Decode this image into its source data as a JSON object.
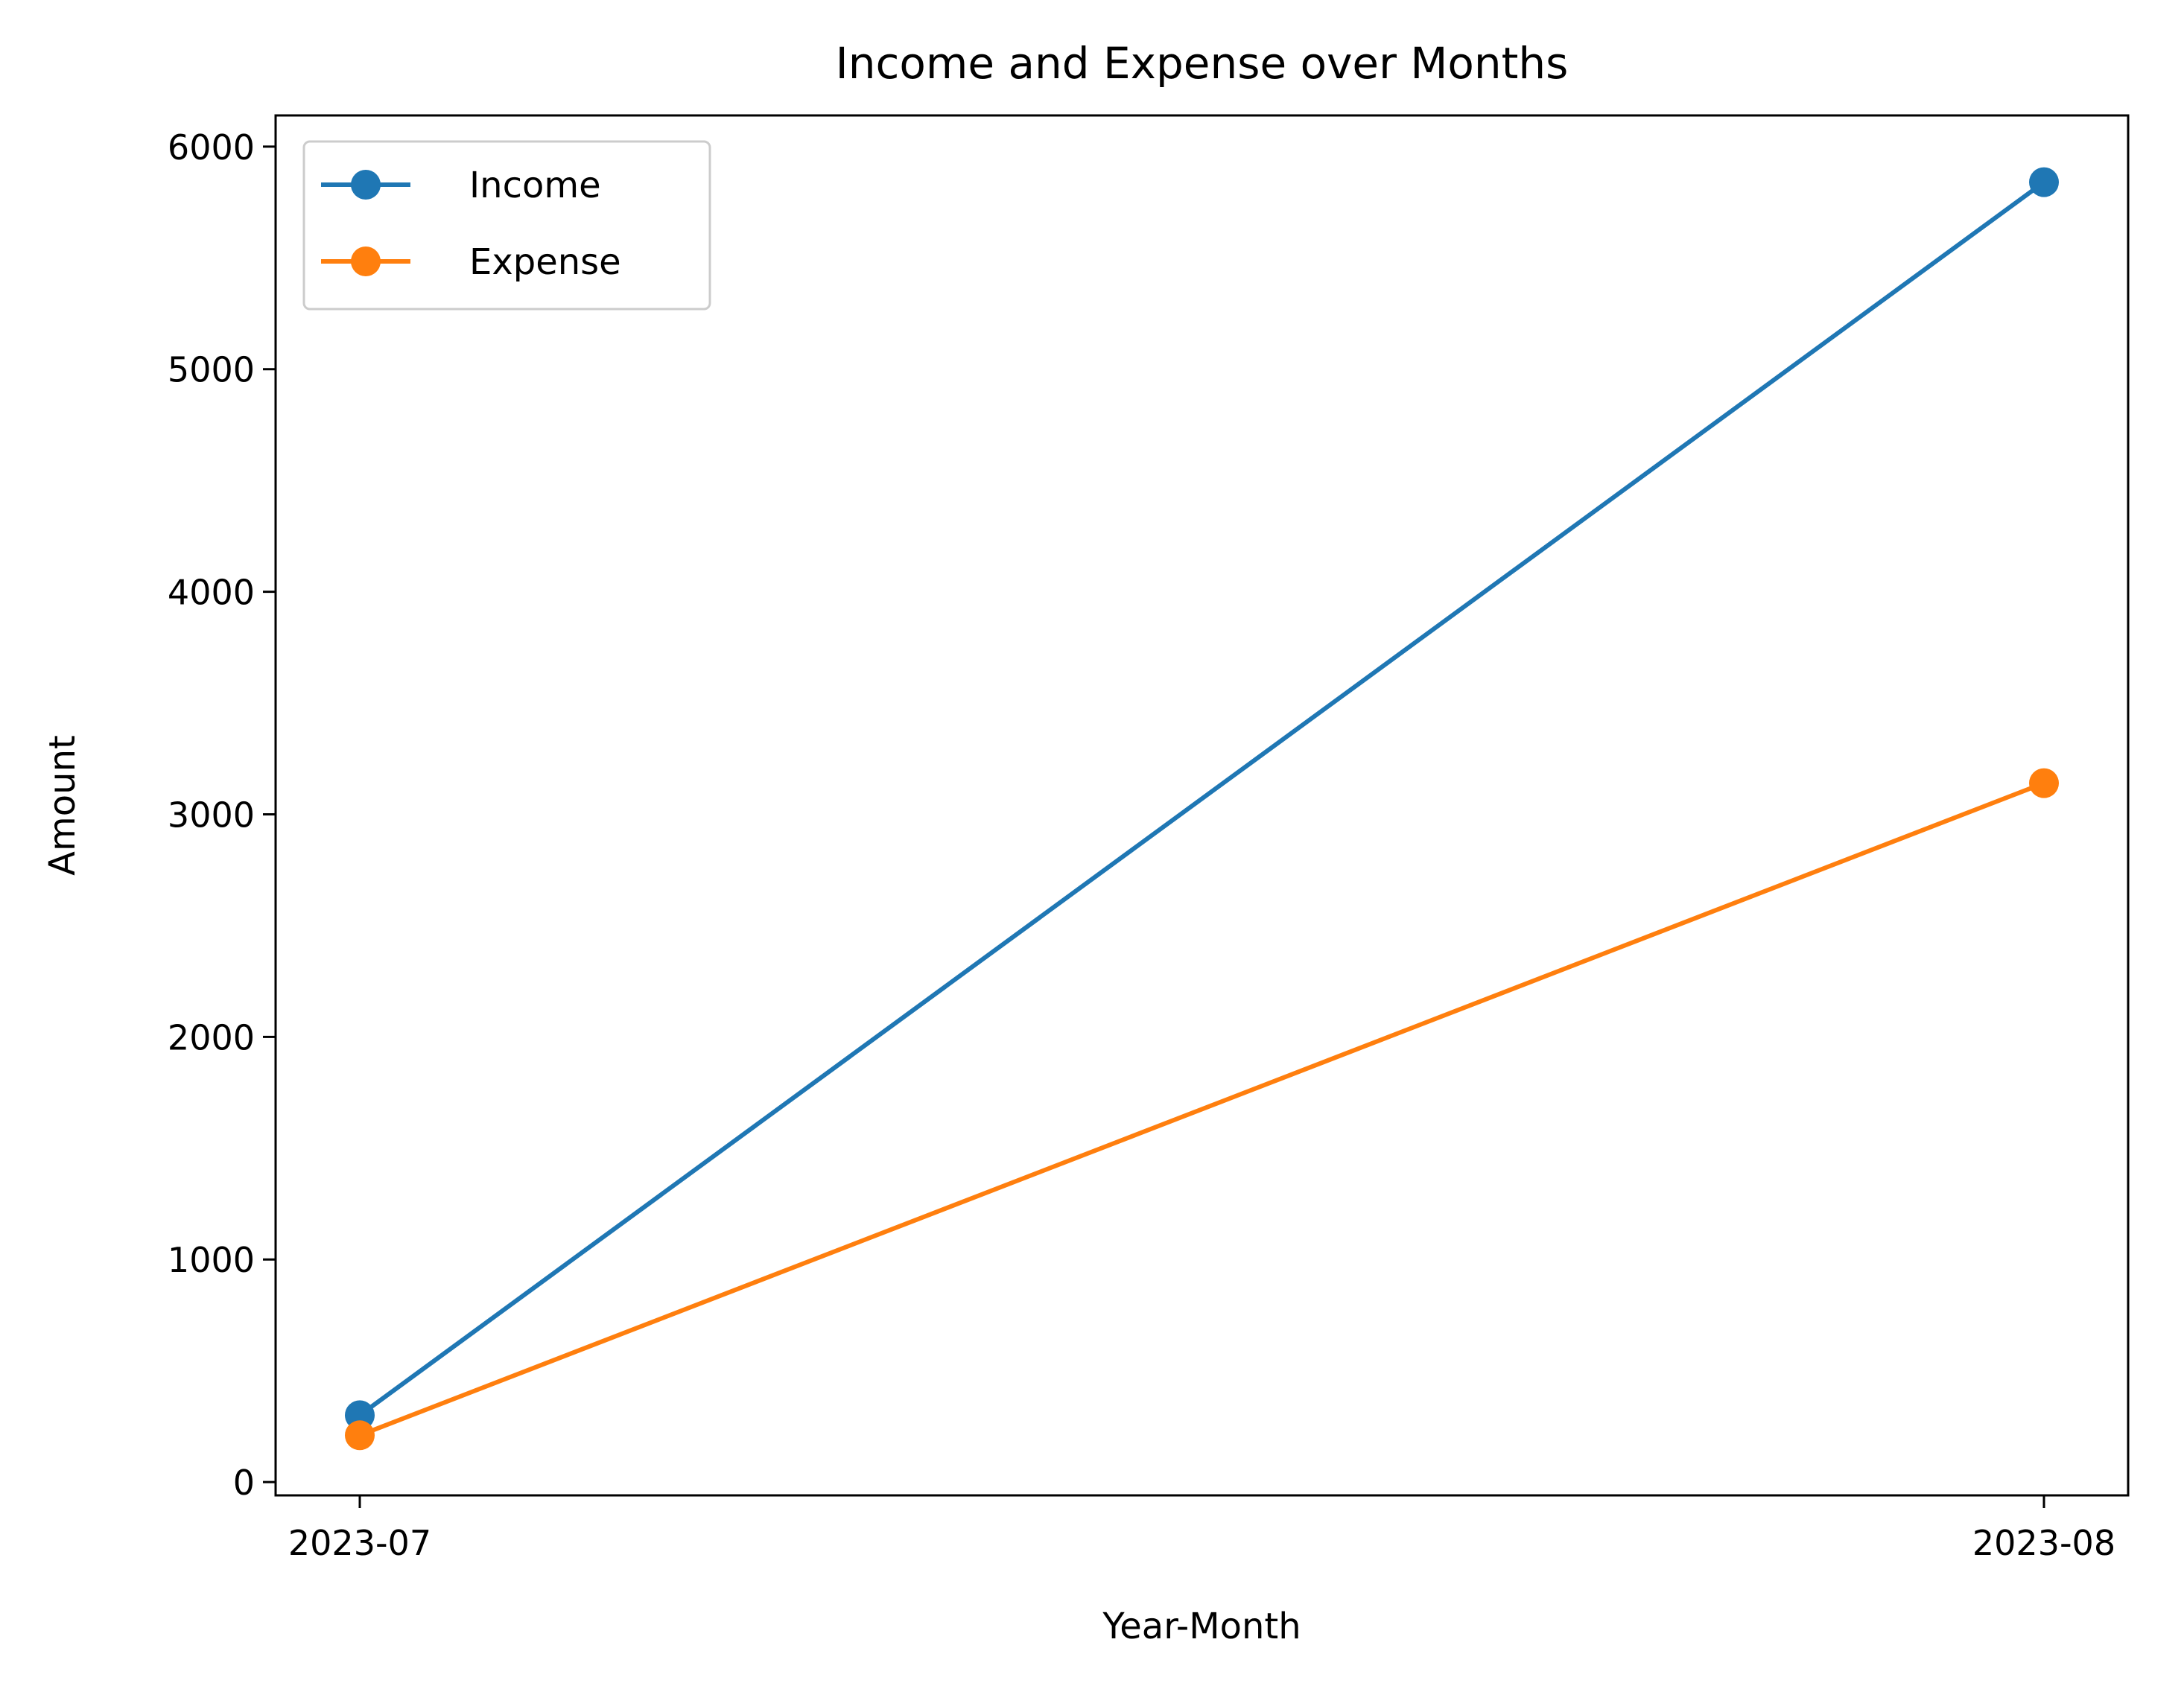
{
  "chart_data": {
    "type": "line",
    "title": "Income and Expense over Months",
    "xlabel": "Year-Month",
    "ylabel": "Amount",
    "categories": [
      "2023-07",
      "2023-08"
    ],
    "ylim": [
      -60,
      6140
    ],
    "yticks": [
      0,
      1000,
      2000,
      3000,
      4000,
      5000,
      6000
    ],
    "grid": false,
    "legend_position": "top-left",
    "marker": "circle",
    "series": [
      {
        "name": "Income",
        "values": [
          300,
          5840
        ],
        "color": "#1f77b4"
      },
      {
        "name": "Expense",
        "values": [
          210,
          3140
        ],
        "color": "#ff7f0e"
      }
    ]
  }
}
